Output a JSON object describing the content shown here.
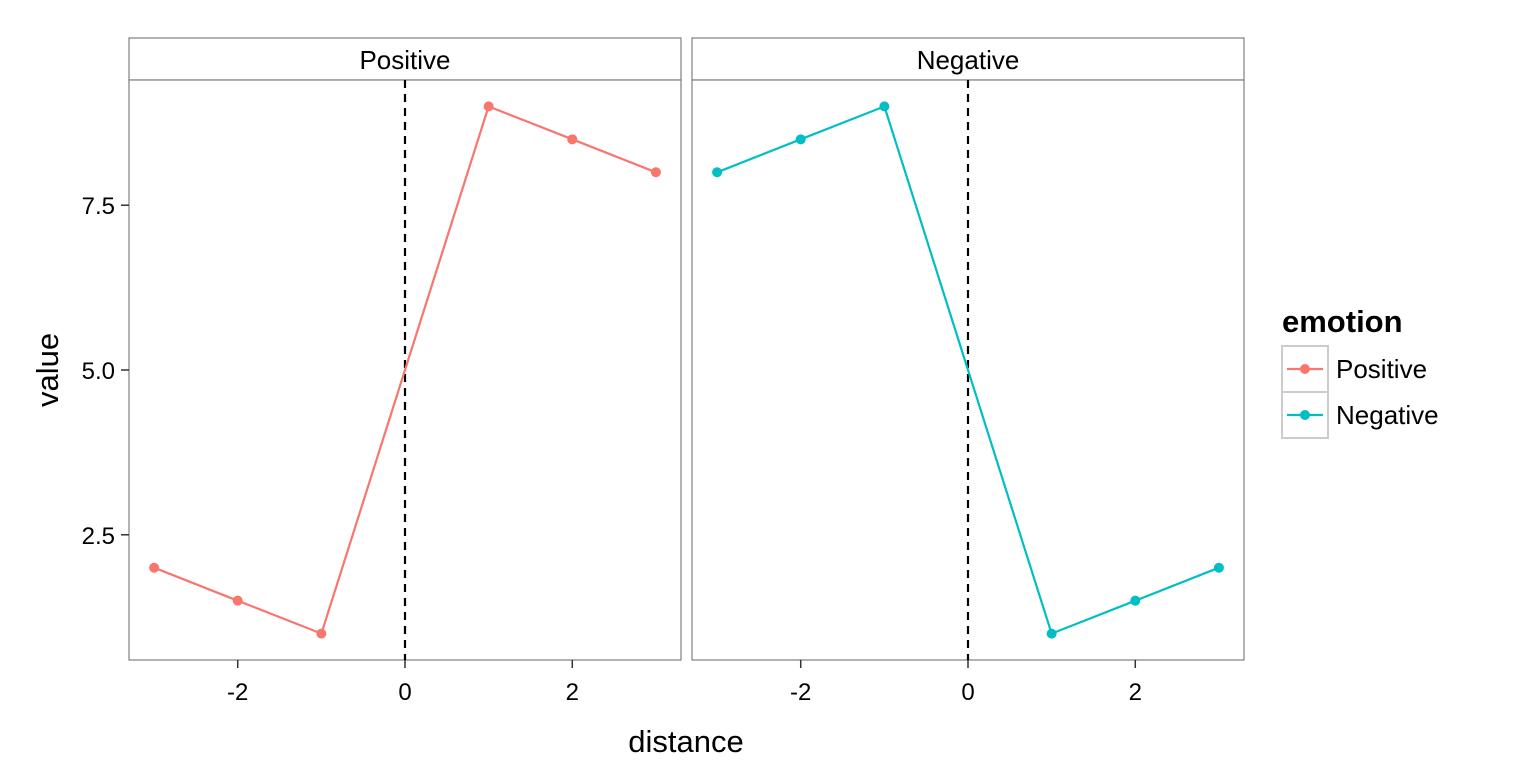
{
  "chart_data": {
    "type": "line",
    "xlabel": "distance",
    "ylabel": "value",
    "xlim": [
      -3.3,
      3.3
    ],
    "ylim": [
      0.6,
      9.4
    ],
    "x_ticks": [
      -2,
      0,
      2
    ],
    "x_tick_labels": [
      "-2",
      "0",
      "2"
    ],
    "y_ticks": [
      2.5,
      5.0,
      7.5
    ],
    "y_tick_labels": [
      "2.5",
      "5.0",
      "7.5"
    ],
    "reference_line": {
      "x": 0,
      "style": "dashed",
      "color": "#000000"
    },
    "grid": false,
    "legend": {
      "title": "emotion",
      "position": "right",
      "entries": [
        {
          "label": "Positive",
          "color": "#F8766D"
        },
        {
          "label": "Negative",
          "color": "#00BFC4"
        }
      ]
    },
    "facets": [
      {
        "strip_label": "Positive",
        "series": [
          {
            "name": "Positive",
            "color": "#F8766D",
            "points": [
              {
                "x": -3,
                "y": 2.0,
                "marker": true
              },
              {
                "x": -2,
                "y": 1.5,
                "marker": true
              },
              {
                "x": -1,
                "y": 1.0,
                "marker": true
              },
              {
                "x": 0,
                "y": 5.0,
                "marker": false
              },
              {
                "x": 1,
                "y": 9.0,
                "marker": true
              },
              {
                "x": 2,
                "y": 8.5,
                "marker": true
              },
              {
                "x": 3,
                "y": 8.0,
                "marker": true
              }
            ]
          }
        ]
      },
      {
        "strip_label": "Negative",
        "series": [
          {
            "name": "Negative",
            "color": "#00BFC4",
            "points": [
              {
                "x": -3,
                "y": 8.0,
                "marker": true
              },
              {
                "x": -2,
                "y": 8.5,
                "marker": true
              },
              {
                "x": -1,
                "y": 9.0,
                "marker": true
              },
              {
                "x": 0,
                "y": 5.0,
                "marker": false
              },
              {
                "x": 1,
                "y": 1.0,
                "marker": true
              },
              {
                "x": 2,
                "y": 1.5,
                "marker": true
              },
              {
                "x": 3,
                "y": 2.0,
                "marker": true
              }
            ]
          }
        ]
      }
    ]
  }
}
